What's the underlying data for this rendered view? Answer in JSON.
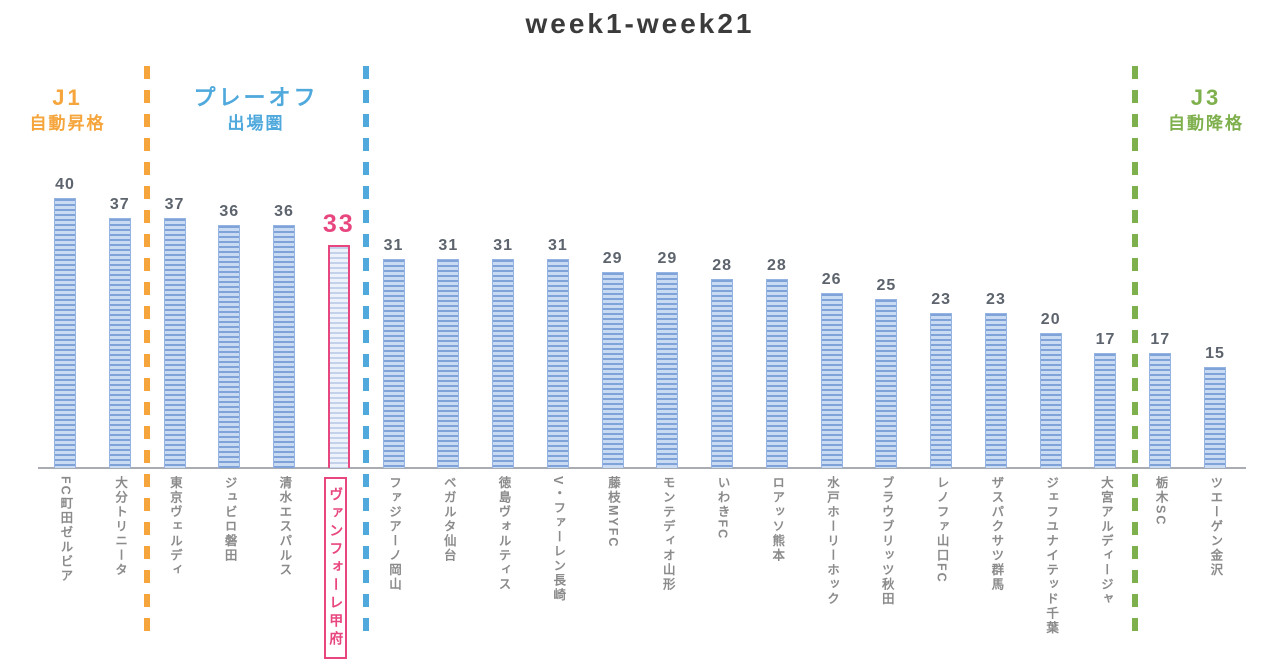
{
  "title": "week1-week21",
  "zones": {
    "j1": {
      "line1": "J1",
      "line2": "自動昇格",
      "color": "#F5A53B"
    },
    "playoff": {
      "line1": "プレーオフ",
      "line2": "出場圏",
      "color": "#4FA9DC"
    },
    "j3": {
      "line1": "J3",
      "line2": "自動降格",
      "color": "#7FB04E"
    }
  },
  "chart_data": {
    "type": "bar",
    "title": "week1-week21",
    "categories": [
      "FC町田ゼルビア",
      "大分トリニータ",
      "東京ヴェルディ",
      "ジュビロ磐田",
      "清水エスパルス",
      "ヴァンフォーレ甲府",
      "ファジアーノ岡山",
      "ベガルタ仙台",
      "徳島ヴォルティス",
      "V・ファーレン長崎",
      "藤枝MYFC",
      "モンテディオ山形",
      "いわきFC",
      "ロアッソ熊本",
      "水戸ホーリーホック",
      "ブラウブリッツ秋田",
      "レノファ山口FC",
      "ザスパクサツ群馬",
      "ジェフユナイテッド千葉",
      "大宮アルディージャ",
      "栃木SC",
      "ツエーゲン金沢"
    ],
    "values": [
      40,
      37,
      37,
      36,
      36,
      33,
      31,
      31,
      31,
      31,
      29,
      29,
      28,
      28,
      26,
      25,
      23,
      23,
      20,
      17,
      17,
      15
    ],
    "highlight_index": 5,
    "highlight_team": "ヴァンフォーレ甲府",
    "xlabel": "",
    "ylabel": "",
    "ylim": [
      0,
      42
    ],
    "grid": false,
    "legend": false,
    "bar_stripe_dark": "#7FA3D8",
    "bar_stripe_light": "#C9DAF3",
    "bar_border": "#96B4E2",
    "highlight_color": "#E8467F",
    "highlight_stripe_dark": "#C3D2EA",
    "highlight_stripe_light": "#EEF3FB",
    "value_label_color": "#5D646D",
    "separators": [
      {
        "after_index": 1,
        "zone": "j1"
      },
      {
        "after_index": 5,
        "zone": "playoff"
      },
      {
        "after_index": 19,
        "zone": "j3"
      }
    ]
  }
}
